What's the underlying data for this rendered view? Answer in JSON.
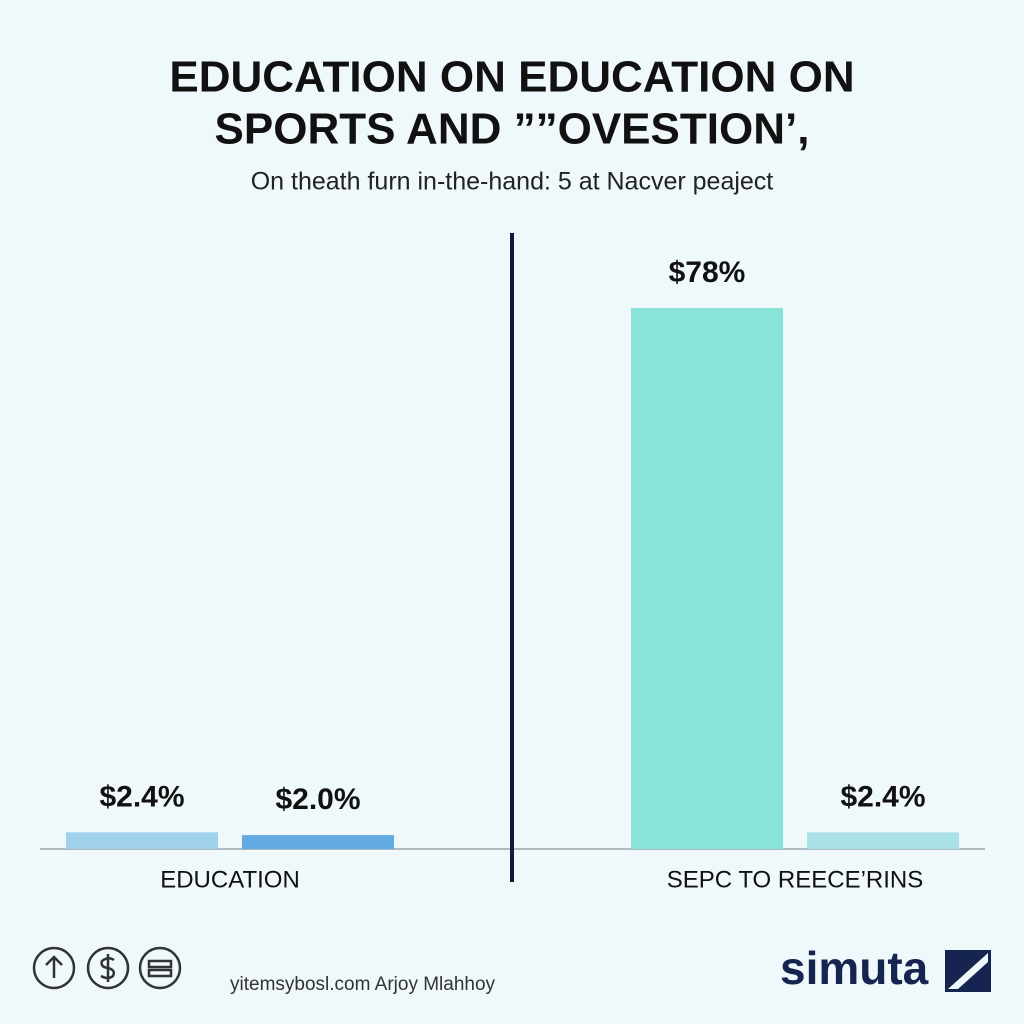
{
  "chart_data": {
    "type": "bar",
    "title": [
      "EDUCATION ON EDUCATION ON",
      "SPORTS AND ””OVESTION’,"
    ],
    "subtitle": "On theath furn in-the-hand: 5 at Nacver peaject",
    "groups": [
      {
        "label": "EDUCATION",
        "bars": [
          {
            "value": 2.4,
            "value_label": "$2.4%",
            "color": "#9fd1ec"
          },
          {
            "value": 2.0,
            "value_label": "$2.0%",
            "color": "#62abe2"
          }
        ]
      },
      {
        "label": "SEPC TO REECE’RINS",
        "bars": [
          {
            "value": 78,
            "value_label": "$78%",
            "color": "#8ae3d7"
          },
          {
            "value": 2.4,
            "value_label": "$2.4%",
            "color": "#a9e1e6"
          }
        ]
      }
    ]
  },
  "footer": {
    "credit": "yitemsybosl.com Arjoy Mlahhoy",
    "logo": "simuta"
  }
}
